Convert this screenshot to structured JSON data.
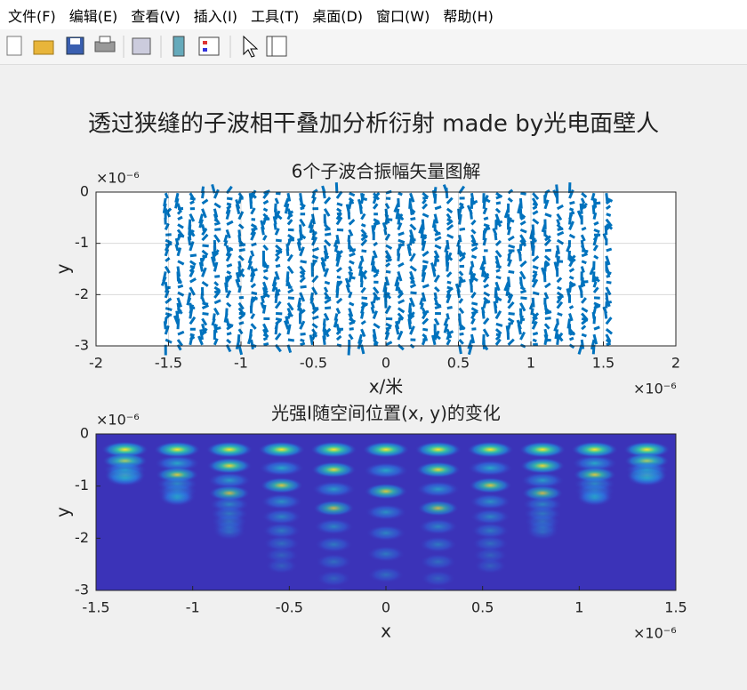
{
  "menu": [
    "文件(F)",
    "编辑(E)",
    "查看(V)",
    "插入(I)",
    "工具(T)",
    "桌面(D)",
    "窗口(W)",
    "帮助(H)"
  ],
  "figure_title": "透过狭缝的子波相干叠加分析衍射 made by光电面壁人",
  "chart_data": [
    {
      "type": "quiver",
      "title": "6个子波合振幅矢量图解",
      "xlabel": "x/米",
      "ylabel": "y",
      "x_exponent": "×10⁻⁶",
      "y_exponent": "×10⁻⁶",
      "color": "#0072bd",
      "grid": true,
      "xlim": [
        -2,
        2
      ],
      "ylim": [
        -3,
        0
      ],
      "xticks": [
        -2,
        -1.5,
        -1,
        -0.5,
        0,
        0.5,
        1,
        1.5,
        2
      ],
      "yticks": [
        0,
        -1,
        -2,
        -3
      ]
    },
    {
      "type": "heatmap",
      "title": "光强I随空间位置(x, y)的变化",
      "xlabel": "x",
      "ylabel": "y",
      "x_exponent": "×10⁻⁶",
      "y_exponent": "×10⁻⁶",
      "grid": false,
      "xlim": [
        -1.5,
        1.5
      ],
      "ylim": [
        -3,
        0
      ],
      "xticks": [
        -1.5,
        -1,
        -0.5,
        0,
        0.5,
        1,
        1.5
      ],
      "yticks": [
        0,
        -1,
        -2,
        -3
      ]
    }
  ]
}
